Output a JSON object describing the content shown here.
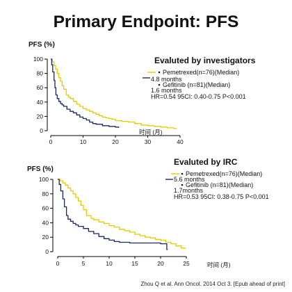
{
  "slide": {
    "title": "Primary Endpoint: PFS",
    "title_color": "#e42320",
    "footer": "Zhou Q et al. Ann Oncol. 2014 Oct 3. [Epub ahead of print]"
  },
  "chart_data": [
    {
      "type": "line",
      "step": true,
      "title": "Evaluted by investigators",
      "xlabel": "时间 (月)",
      "ylabel": "PFS (%)",
      "xlim": [
        0,
        40
      ],
      "ylim": [
        0,
        100
      ],
      "xticks": [
        0,
        10,
        20,
        30,
        40
      ],
      "yticks": [
        0,
        20,
        40,
        60,
        80,
        100
      ],
      "grid": false,
      "legend_position": "top-right",
      "annotation": "HR=0.54 95CI: 0.40-0.75 P<0.001",
      "series": [
        {
          "name": "Pemetrexed(n=76)(Median)",
          "median": "4.8 months",
          "color": "#e6cb00",
          "x": [
            0,
            0.5,
            1,
            1.5,
            2,
            2.5,
            3,
            3.5,
            4,
            4.8,
            5.5,
            6,
            7,
            8,
            9,
            10,
            11,
            12,
            13,
            14,
            15,
            16,
            17,
            18,
            19,
            20,
            22,
            24,
            26,
            28,
            30,
            32,
            34,
            36,
            38,
            39
          ],
          "y": [
            100,
            96,
            91,
            86,
            80,
            74,
            69,
            63,
            58,
            50,
            47,
            45,
            41,
            37,
            34,
            31,
            29,
            27,
            25,
            23,
            21,
            19,
            18,
            17,
            16,
            14,
            13,
            12,
            10,
            8,
            7,
            6,
            5,
            4,
            3,
            3
          ]
        },
        {
          "name": "Gefitinib (n=81)(Median)",
          "median": "1.6 months",
          "color": "#1a2766",
          "x": [
            0,
            0.3,
            0.6,
            1,
            1.3,
            1.6,
            2,
            2.5,
            3,
            3.5,
            4,
            5,
            6,
            7,
            8,
            9,
            10,
            11,
            12,
            13,
            14,
            16,
            18,
            20,
            21
          ],
          "y": [
            100,
            92,
            82,
            70,
            60,
            50,
            45,
            41,
            38,
            36,
            34,
            30,
            27,
            25,
            22,
            19,
            17,
            15,
            12,
            10,
            9,
            7,
            6,
            5,
            4
          ]
        }
      ]
    },
    {
      "type": "line",
      "step": true,
      "title": "Evaluted by IRC",
      "xlabel": "时间 (月)",
      "ylabel": "PFS (%)",
      "xlim": [
        0,
        25
      ],
      "ylim": [
        0,
        100
      ],
      "xticks": [
        0,
        5,
        10,
        15,
        20,
        25
      ],
      "yticks": [
        0,
        20,
        40,
        60,
        80,
        100
      ],
      "grid": false,
      "legend_position": "top-right",
      "annotation": "HR=0.53 95CI: 0.38-0.75 P<0.001",
      "series": [
        {
          "name": "Pemetrexed(n=76)(Median)",
          "median": "5.6 months",
          "color": "#e6cb00",
          "x": [
            0,
            0.5,
            1,
            1.5,
            2,
            2.5,
            3,
            3.5,
            4,
            4.5,
            5,
            5.6,
            6.5,
            7,
            8,
            9,
            10,
            11,
            12,
            13,
            14,
            15,
            16,
            17,
            18,
            19,
            20,
            21,
            22,
            23,
            24,
            24.8
          ],
          "y": [
            100,
            98,
            95,
            92,
            88,
            84,
            80,
            75,
            70,
            64,
            58,
            50,
            46,
            44,
            41,
            39,
            36,
            34,
            31,
            29,
            27,
            24,
            22,
            20,
            19,
            17,
            16,
            13,
            11,
            8,
            5,
            4
          ]
        },
        {
          "name": "Gefitinib (n=81)(Median)",
          "median": "1.7months",
          "color": "#1a2766",
          "x": [
            0,
            0.3,
            0.6,
            1,
            1.3,
            1.7,
            2,
            2.5,
            3,
            3.5,
            4,
            5,
            6,
            7,
            8,
            9,
            10,
            11,
            12,
            14,
            16,
            18,
            20,
            21,
            21.2,
            21.4
          ],
          "y": [
            100,
            93,
            84,
            73,
            62,
            50,
            45,
            42,
            39,
            37,
            35,
            32,
            28,
            25,
            21,
            18,
            16,
            14,
            13,
            12,
            12,
            12,
            11,
            11,
            3,
            3
          ]
        }
      ]
    }
  ]
}
